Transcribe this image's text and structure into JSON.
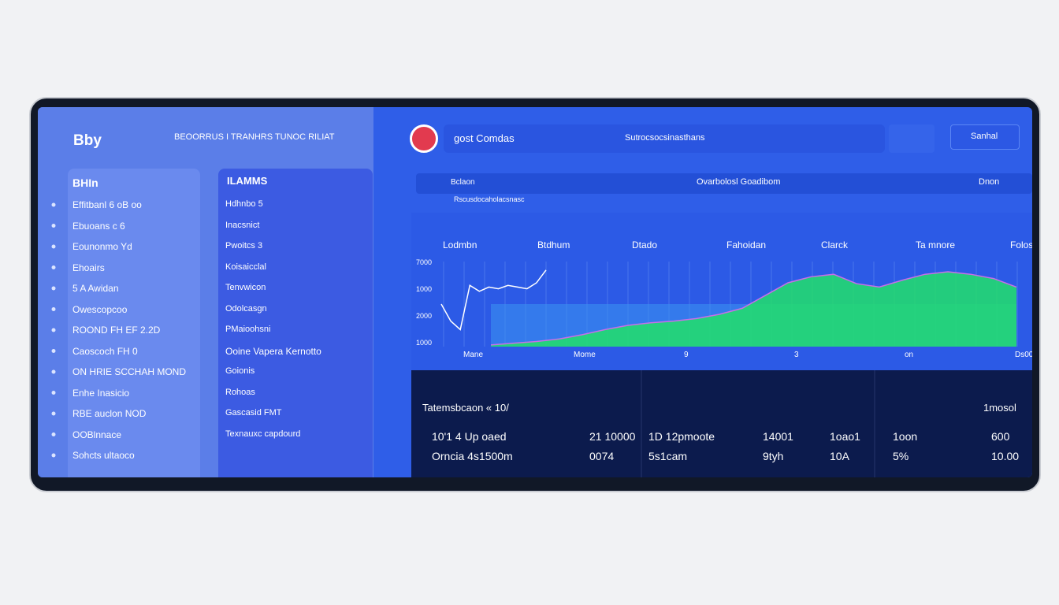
{
  "header": {
    "brand": "Bby",
    "nav": "BEOORRUS I TRANHRS TUNOC RILIAT",
    "app_name": "gost Comdas",
    "search": "Sutrocsocsinasthans",
    "button": "Sanhal"
  },
  "sidebar": {
    "title": "BHIn",
    "items": [
      "Effitbanl 6 oB oo",
      "Ebuoans c 6",
      "Eounonmo Yd",
      "Ehoairs",
      "5 A Awidan",
      "Owescopcoo",
      "ROOND FH EF 2.2D",
      "Caoscoch FH 0",
      "ON HRIE SCCHAH MOND",
      "Enhe Inasicio",
      "RBE auclon NOD",
      "OOBlnnace",
      "Sohcts ultaoco"
    ]
  },
  "panel": {
    "title": "ILAMMS",
    "items": [
      "Hdhnbo 5",
      "Inacsnict",
      "Pwoitcs 3",
      "Koisaicclal",
      "Tenvwicon",
      "Odolcasgn",
      "PMaioohsni",
      "Ooine Vapera Kernotto",
      "Goionis",
      "Rohoas",
      "Gascasid FMT",
      "Texnauxc capdourd"
    ]
  },
  "subbar": {
    "left": "Bclaon",
    "center": "Ovarbolosl Goadibom",
    "right": "Dnon",
    "caption": "Rscusdocaholacsnasc"
  },
  "chart": {
    "headers": [
      "Lodmbn",
      "Btdhum",
      "Dtado",
      "Fahoidan",
      "Clarck",
      "Ta mnore",
      "Folosbuim"
    ],
    "y_labels": [
      "7000",
      "1000",
      "2000",
      "1000"
    ],
    "x_labels": [
      "Mane",
      "Mome",
      "9",
      "3",
      "on",
      "Ds00"
    ],
    "ylim": [
      0,
      100
    ],
    "series": [
      {
        "color": "#22e06a",
        "values": [
          2,
          4,
          6,
          9,
          14,
          20,
          25,
          28,
          30,
          33,
          38,
          45,
          60,
          75,
          82,
          85,
          74,
          70,
          78,
          85,
          88,
          85,
          80,
          70
        ]
      },
      {
        "color": "#ffffff",
        "values": [
          50,
          30,
          20,
          72,
          65,
          70,
          68,
          72,
          70,
          68,
          75,
          90
        ]
      }
    ]
  },
  "table": {
    "title": "Tatemsbcaon « 10/",
    "title_right": "1mosol",
    "rows": [
      [
        "10'1 4 Up oaed",
        "21 10000",
        "1D 12pmoote",
        "14001",
        "1oao1",
        "1oon",
        "600"
      ],
      [
        "Orncia 4s1500m",
        "0074",
        "5s1cam",
        "9tyh",
        "10A",
        "5%",
        "10.00"
      ]
    ]
  }
}
